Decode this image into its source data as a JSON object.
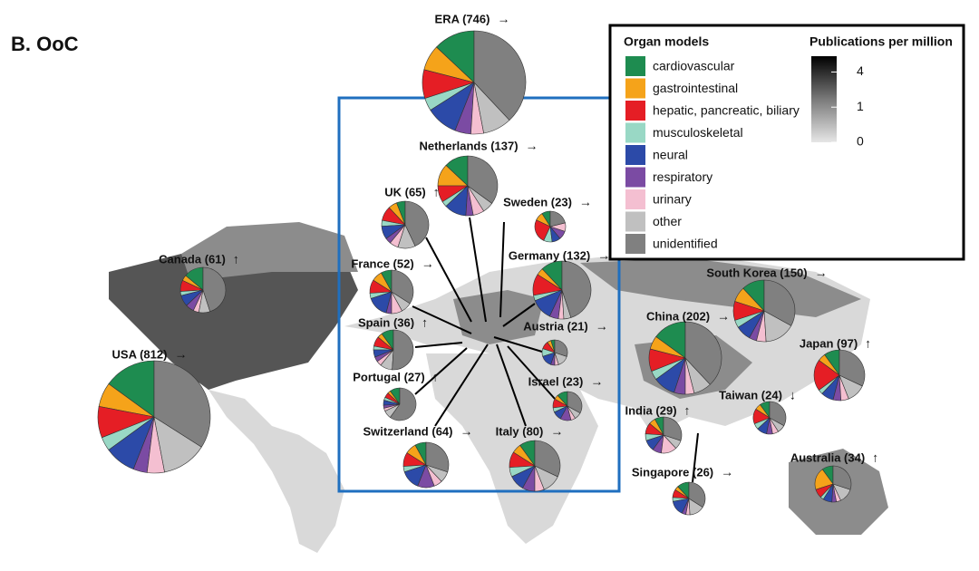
{
  "chart_data": {
    "type": "pie",
    "title": "B. OoC",
    "legend_title": "Organ models",
    "categories": [
      "cardiovascular",
      "gastrointestinal",
      "hepatic, pancreatic, biliary",
      "musculoskeletal",
      "neural",
      "respiratory",
      "urinary",
      "other",
      "unidentified"
    ],
    "colors": [
      "#1e8c50",
      "#f5a31a",
      "#e51e25",
      "#99d8c5",
      "#2c4aa8",
      "#7b4ba3",
      "#f4bfd1",
      "#c0c0c0",
      "#808080"
    ],
    "colorbar": {
      "title": "Publications per million",
      "scale": "sqrt",
      "lim": [
        0,
        6
      ],
      "ticks": [
        0,
        1,
        4
      ]
    },
    "pies": [
      {
        "label": "ERA (746)",
        "trend": "→",
        "values": [
          13,
          8,
          9,
          4,
          10,
          5,
          4,
          9,
          38
        ]
      },
      {
        "label": "Netherlands (137)",
        "trend": "→",
        "values": [
          13,
          12,
          9,
          3,
          12,
          4,
          6,
          6,
          35
        ]
      },
      {
        "label": "UK (65)",
        "trend": "↑",
        "values": [
          6,
          6,
          10,
          4,
          9,
          4,
          6,
          12,
          43
        ]
      },
      {
        "label": "Sweden (23)",
        "trend": "→",
        "values": [
          9,
          9,
          25,
          9,
          9,
          9,
          9,
          0,
          21
        ]
      },
      {
        "label": "Canada (61)",
        "trend": "↑",
        "values": [
          14,
          4,
          8,
          3,
          8,
          6,
          4,
          8,
          45
        ]
      },
      {
        "label": "France (52)",
        "trend": "→",
        "values": [
          8,
          8,
          10,
          4,
          16,
          4,
          8,
          8,
          34
        ]
      },
      {
        "label": "Germany (132)",
        "trend": "→",
        "values": [
          12,
          4,
          12,
          3,
          12,
          5,
          3,
          4,
          45
        ]
      },
      {
        "label": "South Korea (150)",
        "trend": "→",
        "values": [
          12,
          8,
          10,
          4,
          8,
          4,
          5,
          16,
          33
        ]
      },
      {
        "label": "Spain (36)",
        "trend": "↑",
        "values": [
          10,
          4,
          8,
          3,
          6,
          4,
          4,
          10,
          51
        ]
      },
      {
        "label": "Austria (21)",
        "trend": "→",
        "values": [
          5,
          5,
          10,
          10,
          15,
          5,
          5,
          15,
          30
        ]
      },
      {
        "label": "China (202)",
        "trend": "→",
        "values": [
          15,
          6,
          10,
          4,
          10,
          5,
          4,
          8,
          38
        ]
      },
      {
        "label": "USA (812)",
        "trend": "→",
        "values": [
          15,
          7,
          9,
          4,
          9,
          4,
          5,
          13,
          34
        ]
      },
      {
        "label": "Japan (97)",
        "trend": "↑",
        "values": [
          10,
          5,
          20,
          3,
          8,
          5,
          5,
          12,
          32
        ]
      },
      {
        "label": "Portugal (27)",
        "trend": "↑",
        "values": [
          10,
          3,
          5,
          3,
          5,
          3,
          3,
          8,
          60
        ]
      },
      {
        "label": "Israel (23)",
        "trend": "→",
        "values": [
          12,
          5,
          10,
          5,
          10,
          12,
          5,
          8,
          33
        ]
      },
      {
        "label": "Taiwan (24)",
        "trend": "↓",
        "values": [
          10,
          6,
          15,
          6,
          10,
          6,
          6,
          8,
          33
        ]
      },
      {
        "label": "India (29)",
        "trend": "↑",
        "values": [
          8,
          6,
          10,
          6,
          10,
          8,
          14,
          8,
          30
        ]
      },
      {
        "label": "Switzerland (64)",
        "trend": "→",
        "values": [
          8,
          8,
          10,
          4,
          14,
          12,
          6,
          8,
          30
        ]
      },
      {
        "label": "Italy (80)",
        "trend": "→",
        "values": [
          10,
          6,
          10,
          6,
          10,
          8,
          6,
          12,
          32
        ]
      },
      {
        "label": "Singapore (26)",
        "trend": "→",
        "values": [
          12,
          4,
          8,
          4,
          15,
          4,
          4,
          15,
          34
        ]
      },
      {
        "label": "Australia (34)",
        "trend": "↑",
        "values": [
          10,
          20,
          8,
          3,
          8,
          4,
          4,
          13,
          30
        ]
      }
    ]
  }
}
